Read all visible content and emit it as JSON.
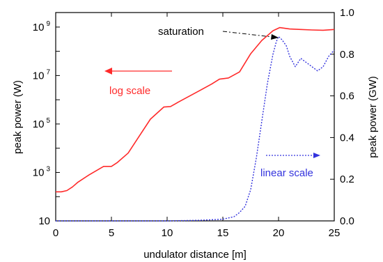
{
  "chart_data": {
    "type": "line",
    "xlabel": "undulator distance [m]",
    "ylabel_left": "peak power (W)",
    "ylabel_right": "peak power (GW)",
    "xlim": [
      0,
      25
    ],
    "x_ticks": [
      "0",
      "5",
      "10",
      "15",
      "20",
      "25"
    ],
    "ylim_left_log10": [
      1,
      9.6
    ],
    "y_ticks_left": [
      {
        "base": "10",
        "exp": "9",
        "log": 9
      },
      {
        "base": "10",
        "exp": "7",
        "log": 7
      },
      {
        "base": "10",
        "exp": "5",
        "log": 5
      },
      {
        "base": "10",
        "exp": "3",
        "log": 3
      },
      {
        "base": "10",
        "exp": "",
        "log": 1
      }
    ],
    "ylim_right": [
      0,
      1.0
    ],
    "y_ticks_right": [
      "1.0",
      "0.8",
      "0.6",
      "0.4",
      "0.2",
      "0.0"
    ],
    "grid": false,
    "colors": {
      "log": "#ff2a2a",
      "linear": "#3333dd",
      "annotation": "#000000"
    },
    "series": [
      {
        "axis": "left-log",
        "style": "solid",
        "x": [
          0,
          0.5,
          1,
          1.5,
          2,
          3,
          4.3,
          5,
          5.5,
          6.5,
          7.5,
          8.5,
          9.7,
          10.3,
          11,
          12,
          13,
          14,
          14.7,
          15.5,
          16.5,
          17.5,
          18.5,
          19.5,
          20.1,
          21,
          22,
          23,
          24,
          25
        ],
        "y_log10": [
          2.2,
          2.2,
          2.25,
          2.4,
          2.6,
          2.9,
          3.25,
          3.25,
          3.4,
          3.8,
          4.5,
          5.2,
          5.7,
          5.72,
          5.9,
          6.15,
          6.4,
          6.65,
          6.85,
          6.9,
          7.15,
          7.9,
          8.45,
          8.85,
          8.98,
          8.92,
          8.9,
          8.88,
          8.87,
          8.9
        ]
      },
      {
        "axis": "right-linear",
        "style": "dotted",
        "x": [
          0,
          5,
          10,
          13,
          15,
          16,
          16.5,
          17,
          17.5,
          18,
          18.5,
          19,
          19.5,
          19.8,
          20,
          20.3,
          20.7,
          21,
          21.5,
          22,
          22.5,
          23,
          23.5,
          24,
          24.5,
          25
        ],
        "y": [
          0,
          0,
          0,
          0.003,
          0.008,
          0.02,
          0.04,
          0.07,
          0.15,
          0.3,
          0.48,
          0.66,
          0.8,
          0.86,
          0.885,
          0.87,
          0.84,
          0.79,
          0.74,
          0.78,
          0.76,
          0.74,
          0.72,
          0.74,
          0.79,
          0.82
        ]
      }
    ],
    "annotations": {
      "saturation": "saturation",
      "log_scale": "log scale",
      "linear_scale": "linear scale"
    }
  }
}
